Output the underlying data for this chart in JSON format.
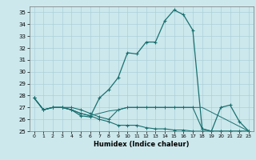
{
  "xlabel": "Humidex (Indice chaleur)",
  "xlim": [
    -0.5,
    23.5
  ],
  "ylim": [
    25,
    35.5
  ],
  "yticks": [
    25,
    26,
    27,
    28,
    29,
    30,
    31,
    32,
    33,
    34,
    35
  ],
  "xticks": [
    0,
    1,
    2,
    3,
    4,
    5,
    6,
    7,
    8,
    9,
    10,
    11,
    12,
    13,
    14,
    15,
    16,
    17,
    18,
    19,
    20,
    21,
    22,
    23
  ],
  "background_color": "#cce8ec",
  "grid_color": "#aad0d8",
  "line_color": "#1a7070",
  "line1_x": [
    0,
    1,
    2,
    3,
    4,
    5,
    6,
    7,
    8,
    9,
    10,
    11,
    12,
    13,
    14,
    15,
    16,
    17,
    18,
    19,
    20,
    21,
    22,
    23
  ],
  "line1_y": [
    27.8,
    26.8,
    27.0,
    27.0,
    26.8,
    26.3,
    26.2,
    27.8,
    28.5,
    29.5,
    31.6,
    31.5,
    32.5,
    32.5,
    34.3,
    35.2,
    34.8,
    33.5,
    25.2,
    25.0,
    27.0,
    27.2,
    25.8,
    25.0
  ],
  "line2_x": [
    0,
    1,
    2,
    3,
    4,
    5,
    6,
    7,
    8,
    9,
    10,
    11,
    12,
    13,
    14,
    15,
    16,
    17,
    18,
    19,
    20,
    21,
    22,
    23
  ],
  "line2_y": [
    27.8,
    26.8,
    27.0,
    27.0,
    27.0,
    26.8,
    26.5,
    26.2,
    26.0,
    26.8,
    27.0,
    27.0,
    27.0,
    27.0,
    27.0,
    27.0,
    27.0,
    27.0,
    25.2,
    25.0,
    25.0,
    25.0,
    25.0,
    25.0
  ],
  "line3_x": [
    0,
    1,
    2,
    3,
    4,
    5,
    6,
    7,
    8,
    9,
    10,
    11,
    12,
    13,
    14,
    15,
    16,
    17,
    18,
    19,
    20,
    21,
    22,
    23
  ],
  "line3_y": [
    27.8,
    26.8,
    27.0,
    27.0,
    26.8,
    26.5,
    26.3,
    26.0,
    25.8,
    25.5,
    25.5,
    25.5,
    25.3,
    25.2,
    25.2,
    25.1,
    25.1,
    25.0,
    25.0,
    25.0,
    25.0,
    25.0,
    25.0,
    25.0
  ],
  "line4_x": [
    0,
    1,
    2,
    3,
    4,
    5,
    6,
    7,
    8,
    9,
    10,
    11,
    12,
    13,
    14,
    15,
    16,
    17,
    18,
    23
  ],
  "line4_y": [
    27.8,
    26.8,
    27.0,
    27.0,
    26.8,
    26.5,
    26.3,
    26.5,
    26.7,
    26.8,
    27.0,
    27.0,
    27.0,
    27.0,
    27.0,
    27.0,
    27.0,
    27.0,
    27.0,
    25.0
  ]
}
